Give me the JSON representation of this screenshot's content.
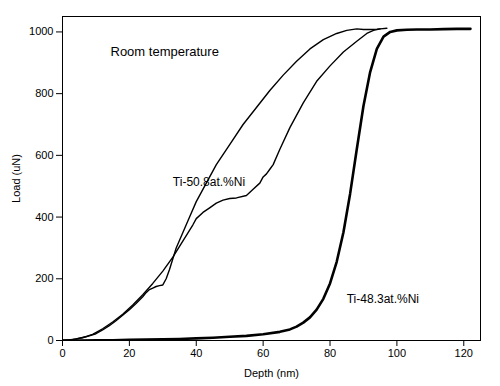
{
  "chart_data": {
    "type": "line",
    "title": "Room temperature",
    "xlabel": "Depth (nm)",
    "ylabel": "Load (uN)",
    "xlim": [
      0,
      125
    ],
    "ylim": [
      0,
      1050
    ],
    "xticks": [
      0,
      20,
      40,
      60,
      80,
      100,
      120
    ],
    "yticks": [
      0,
      200,
      400,
      600,
      800,
      1000
    ],
    "series": [
      {
        "color": "#000000",
        "x": [
          0,
          2,
          4,
          7,
          10,
          12,
          14,
          16,
          18,
          20,
          22,
          24,
          25,
          26,
          27,
          28,
          29,
          30,
          31,
          32,
          33,
          34,
          36,
          38,
          40,
          43,
          46,
          50,
          54,
          58,
          62,
          66,
          70,
          74,
          78,
          82,
          85,
          88,
          90,
          92,
          94,
          95
        ],
        "values": [
          0,
          2,
          5,
          12,
          22,
          34,
          48,
          64,
          82,
          100,
          120,
          142,
          155,
          165,
          170,
          175,
          178,
          180,
          200,
          230,
          265,
          300,
          350,
          400,
          450,
          510,
          570,
          635,
          700,
          755,
          810,
          860,
          905,
          945,
          975,
          995,
          1005,
          1010,
          1008,
          1008,
          1009,
          1010
        ]
      },
      {
        "color": "#000000",
        "x": [
          0,
          3,
          6,
          9,
          12,
          15,
          18,
          21,
          24,
          27,
          30,
          33,
          35,
          37,
          39,
          40,
          42,
          44,
          46,
          48,
          50,
          52,
          55,
          57,
          59,
          60,
          61,
          62,
          63,
          65,
          68,
          72,
          76,
          80,
          84,
          88,
          91,
          93,
          95,
          97
        ],
        "values": [
          0,
          3,
          9,
          20,
          38,
          60,
          85,
          115,
          148,
          185,
          225,
          270,
          305,
          340,
          375,
          395,
          415,
          430,
          445,
          455,
          460,
          462,
          470,
          490,
          510,
          530,
          540,
          555,
          570,
          620,
          690,
          770,
          840,
          890,
          935,
          970,
          995,
          1005,
          1010,
          1012
        ]
      },
      {
        "color": "#000000",
        "x": [
          0,
          5,
          10,
          15,
          20,
          25,
          30,
          35,
          40,
          45,
          50,
          55,
          60,
          65,
          68,
          70,
          72,
          74,
          76,
          78,
          80,
          82,
          84,
          86,
          88,
          90,
          92,
          94,
          96,
          98,
          100,
          103,
          106,
          110,
          114,
          118,
          120,
          122
        ],
        "values": [
          0,
          0,
          1,
          1,
          2,
          3,
          4,
          5,
          7,
          9,
          12,
          15,
          20,
          28,
          36,
          45,
          58,
          75,
          100,
          135,
          185,
          255,
          350,
          475,
          620,
          760,
          870,
          945,
          985,
          1000,
          1005,
          1007,
          1008,
          1008,
          1009,
          1010,
          1010,
          1010
        ]
      }
    ],
    "annotations": [
      {
        "text": "Ti-50.8at.%Ni",
        "x": 33,
        "y": 500,
        "color": "#000000"
      },
      {
        "text": "Ti-48.3at.%Ni",
        "x": 85,
        "y": 120,
        "color": "#000000"
      }
    ]
  }
}
